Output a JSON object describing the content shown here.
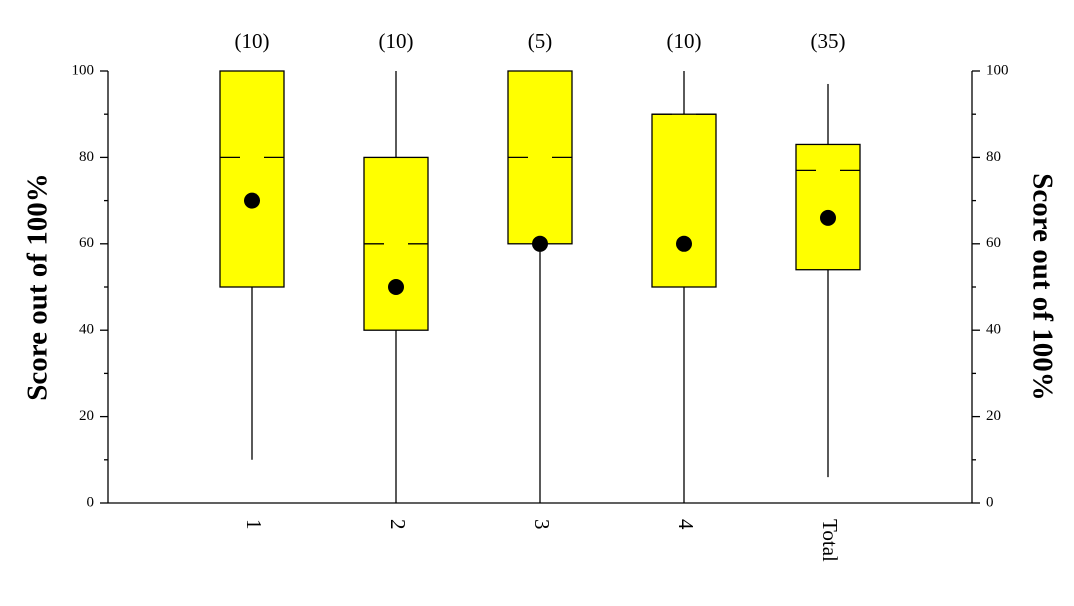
{
  "chart_data": {
    "type": "box",
    "ylabel": "Score out of 100%",
    "y2label": "Score out of 100%",
    "categories": [
      "1",
      "2",
      "3",
      "4",
      "Total"
    ],
    "counts": [
      "(10)",
      "(10)",
      "(5)",
      "(10)",
      "(35)"
    ],
    "boxes": [
      {
        "whislo": 10,
        "q1": 50,
        "med": 80,
        "q3": 100,
        "whishi": 100,
        "mean": 70
      },
      {
        "whislo": 0,
        "q1": 40,
        "med": 60,
        "q3": 80,
        "whishi": 100,
        "mean": 50
      },
      {
        "whislo": 0,
        "q1": 60,
        "med": 80,
        "q3": 100,
        "whishi": 100,
        "mean": 60
      },
      {
        "whislo": 0,
        "q1": 50,
        "med": 90,
        "q3": 90,
        "whishi": 100,
        "mean": 60
      },
      {
        "whislo": 6,
        "q1": 54,
        "med": 77,
        "q3": 83,
        "whishi": 97,
        "mean": 66
      }
    ],
    "color": "#ffff00",
    "ylim": [
      0,
      100
    ],
    "yticks": [
      0,
      20,
      40,
      60,
      80,
      100
    ],
    "minor_yticks": [
      10,
      30,
      50,
      70,
      90
    ],
    "y2lim": [
      0,
      100
    ],
    "y2ticks": [
      0,
      20,
      40,
      60,
      80,
      100
    ]
  }
}
